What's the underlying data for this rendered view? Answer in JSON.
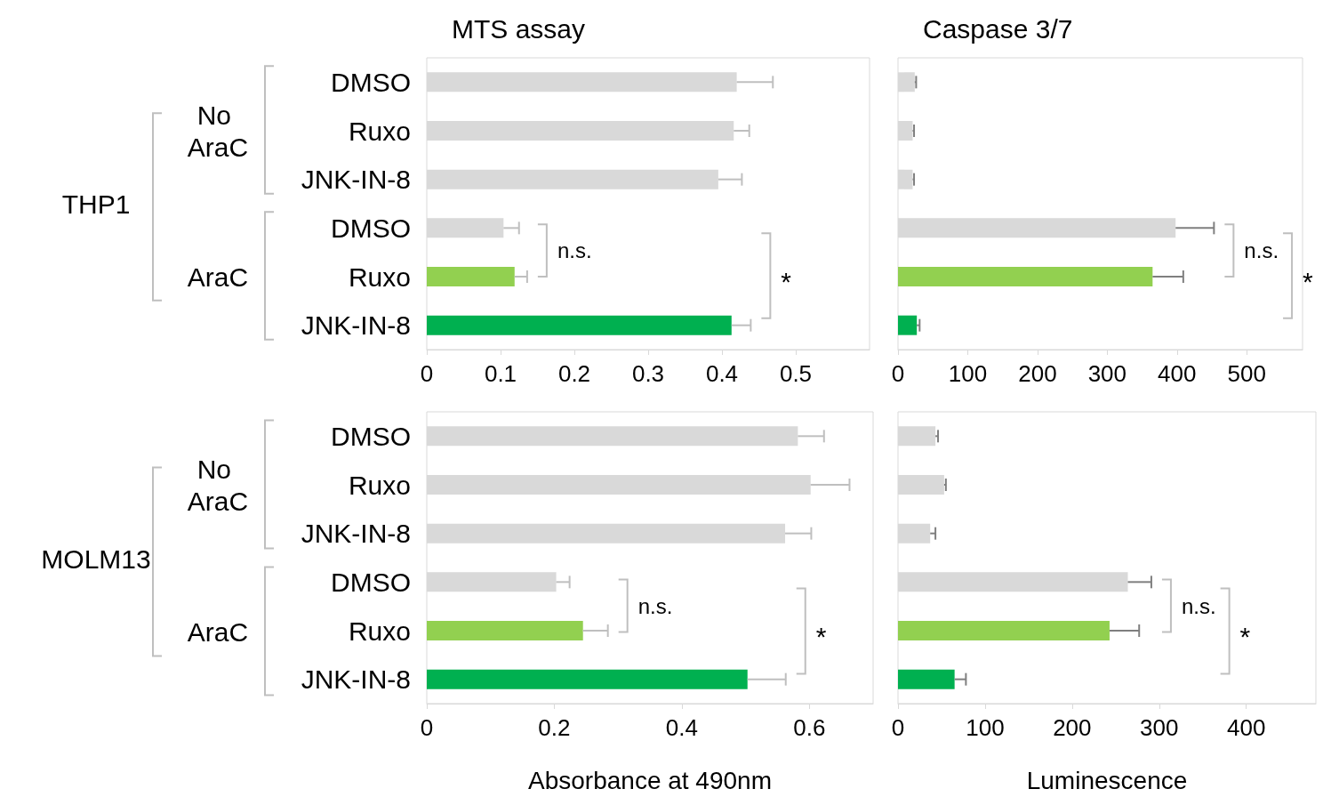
{
  "chart_data": [
    {
      "type": "bar",
      "orientation": "horizontal",
      "title": "MTS assay",
      "categories": [
        "DMSO",
        "Ruxo",
        "JNK-IN-8",
        "DMSO",
        "Ruxo",
        "JNK-IN-8"
      ],
      "values": [
        0.42,
        0.416,
        0.395,
        0.104,
        0.119,
        0.413
      ],
      "errors": [
        [
          0.42,
          0.469
        ],
        [
          0.416,
          0.437
        ],
        [
          0.395,
          0.427
        ],
        [
          0.104,
          0.125
        ],
        [
          0.119,
          0.136
        ],
        [
          0.413,
          0.439
        ]
      ],
      "colors": [
        "#d9d9d9",
        "#d9d9d9",
        "#d9d9d9",
        "#d9d9d9",
        "#92d050",
        "#00b050"
      ],
      "xlim": [
        0,
        0.6
      ],
      "xticks": [
        0,
        0.1,
        0.2,
        0.3,
        0.4,
        0.5
      ],
      "grid": false,
      "annotations": [
        "THP1",
        "No AraC",
        "AraC",
        "n.s.",
        "*"
      ]
    },
    {
      "type": "bar",
      "orientation": "horizontal",
      "title": "Caspase 3/7",
      "categories": [
        "DMSO",
        "Ruxo",
        "JNK-IN-8",
        "DMSO",
        "Ruxo",
        "JNK-IN-8"
      ],
      "values": [
        24,
        21,
        21,
        398,
        365,
        27
      ],
      "errors": [
        [
          24,
          26
        ],
        [
          21,
          23
        ],
        [
          21,
          23
        ],
        [
          398,
          453
        ],
        [
          365,
          409
        ],
        [
          27,
          31
        ]
      ],
      "colors": [
        "#d9d9d9",
        "#d9d9d9",
        "#d9d9d9",
        "#d9d9d9",
        "#92d050",
        "#00b050"
      ],
      "xlim": [
        0,
        580
      ],
      "xticks": [
        0,
        100,
        200,
        300,
        400,
        500
      ],
      "grid": false,
      "tick_labels": "x",
      "annotations": [
        "n.s.",
        "*"
      ]
    },
    {
      "type": "bar",
      "orientation": "horizontal",
      "xlabel": "Absorbance at 490nm",
      "categories": [
        "DMSO",
        "Ruxo",
        "JNK-IN-8",
        "DMSO",
        "Ruxo",
        "JNK-IN-8"
      ],
      "values": [
        0.582,
        0.602,
        0.562,
        0.203,
        0.245,
        0.503
      ],
      "errors": [
        [
          0.582,
          0.623
        ],
        [
          0.602,
          0.663
        ],
        [
          0.562,
          0.603
        ],
        [
          0.203,
          0.224
        ],
        [
          0.245,
          0.284
        ],
        [
          0.503,
          0.563
        ]
      ],
      "colors": [
        "#d9d9d9",
        "#d9d9d9",
        "#d9d9d9",
        "#d9d9d9",
        "#92d050",
        "#00b050"
      ],
      "xlim": [
        0,
        0.7
      ],
      "xticks": [
        0,
        0.2,
        0.4,
        0.6
      ],
      "grid": false,
      "annotations": [
        "MOLM13",
        "No AraC",
        "AraC",
        "n.s.",
        "*"
      ]
    },
    {
      "type": "bar",
      "orientation": "horizontal",
      "xlabel": "Luminescence",
      "categories": [
        "DMSO",
        "Ruxo",
        "JNK-IN-8",
        "DMSO",
        "Ruxo",
        "JNK-IN-8"
      ],
      "values": [
        43,
        53,
        37,
        264,
        243,
        65
      ],
      "errors": [
        [
          43,
          46
        ],
        [
          53,
          55
        ],
        [
          37,
          43
        ],
        [
          264,
          291
        ],
        [
          243,
          277
        ],
        [
          65,
          78
        ]
      ],
      "colors": [
        "#d9d9d9",
        "#d9d9d9",
        "#d9d9d9",
        "#d9d9d9",
        "#92d050",
        "#00b050"
      ],
      "xlim": [
        0,
        480
      ],
      "xticks": [
        0,
        100,
        200,
        300,
        400
      ],
      "grid": false,
      "tick_labels": "x",
      "annotations": [
        "n.s.",
        "*"
      ]
    }
  ]
}
